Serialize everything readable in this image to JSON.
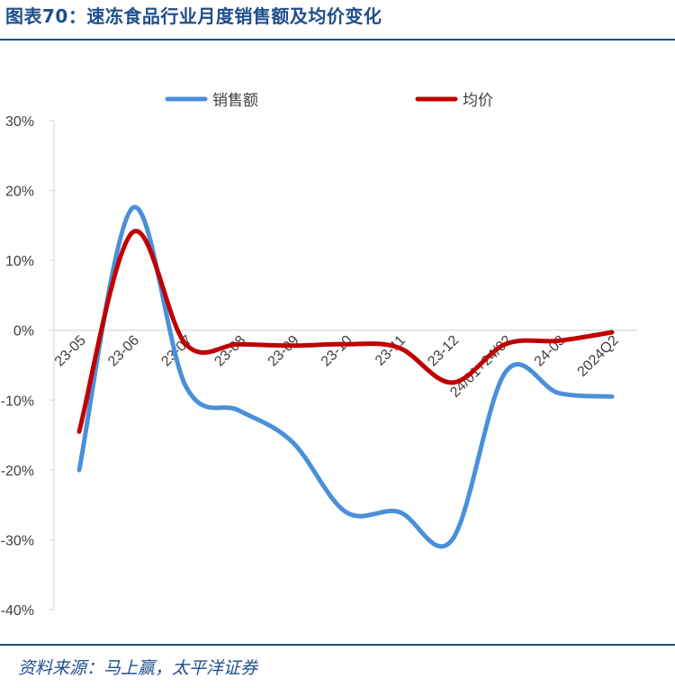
{
  "figure": {
    "title": "图表70：速冻食品行业月度销售额及均价变化",
    "source": "资料来源：马上赢，太平洋证券"
  },
  "chart_data": {
    "type": "line",
    "categories": [
      "23-05",
      "23-06",
      "23-07",
      "23-08",
      "23-09",
      "23-10",
      "23-11",
      "23-12",
      "24/01+24/02",
      "24-03",
      "2024Q2"
    ],
    "series": [
      {
        "name": "销售额",
        "color": "#4a90d9",
        "values": [
          -20,
          17.5,
          -8,
          -11.5,
          -16,
          -26,
          -26,
          -30,
          -6,
          -9,
          -9.5
        ]
      },
      {
        "name": "均价",
        "color": "#c00000",
        "values": [
          -14.5,
          14,
          -2,
          -2,
          -2.2,
          -2,
          -2.5,
          -7.5,
          -2,
          -1.5,
          -0.3
        ]
      }
    ],
    "yticks": [
      "30%",
      "20%",
      "10%",
      "0%",
      "-10%",
      "-20%",
      "-30%",
      "-40%"
    ],
    "ylim": [
      -40,
      30
    ],
    "ytick_step": 10,
    "legend": "top-center",
    "grid": false
  }
}
